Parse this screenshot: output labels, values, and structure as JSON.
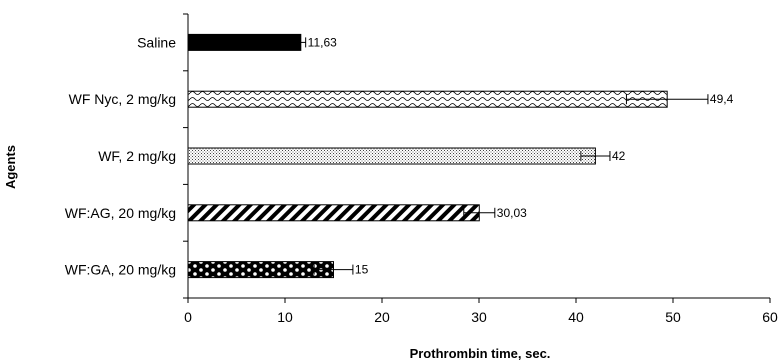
{
  "chart_data": {
    "type": "bar",
    "orientation": "horizontal",
    "xlabel": "Prothrombin time, sec.",
    "ylabel": "Agents",
    "xlim": [
      0,
      60
    ],
    "xticks": [
      "0",
      "10",
      "20",
      "30",
      "40",
      "50",
      "60"
    ],
    "grid": false,
    "bars": [
      {
        "category": "Saline",
        "value": 11.63,
        "label": "11,63",
        "error": 0.5,
        "fill": "solid"
      },
      {
        "category": "WF Nyc, 2 mg/kg",
        "value": 49.4,
        "label": "49,4",
        "error": 4.2,
        "fill": "wave"
      },
      {
        "category": "WF, 2 mg/kg",
        "value": 42,
        "label": "42",
        "error": 1.5,
        "fill": "dots"
      },
      {
        "category": "WF:AG, 20 mg/kg",
        "value": 30.03,
        "label": "30,03",
        "error": 1.6,
        "fill": "diagonal"
      },
      {
        "category": "WF:GA, 20 mg/kg",
        "value": 15,
        "label": "15",
        "error": 2.0,
        "fill": "checker"
      }
    ]
  }
}
